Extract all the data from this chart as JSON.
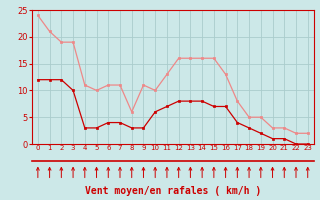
{
  "hours": [
    0,
    1,
    2,
    3,
    4,
    5,
    6,
    7,
    8,
    9,
    10,
    11,
    12,
    13,
    14,
    15,
    16,
    17,
    18,
    19,
    20,
    21,
    22,
    23
  ],
  "wind_avg": [
    12,
    12,
    12,
    10,
    3,
    3,
    4,
    4,
    3,
    3,
    6,
    7,
    8,
    8,
    8,
    7,
    7,
    4,
    3,
    2,
    1,
    1,
    0,
    0
  ],
  "wind_gust": [
    24,
    21,
    19,
    19,
    11,
    10,
    11,
    11,
    6,
    11,
    10,
    13,
    16,
    16,
    16,
    16,
    13,
    8,
    5,
    5,
    3,
    3,
    2,
    2
  ],
  "bg_color": "#cce8e8",
  "grid_color": "#aacccc",
  "line_avg_color": "#cc0000",
  "line_gust_color": "#ee8888",
  "marker_color_avg": "#cc0000",
  "marker_color_gust": "#ee8888",
  "xlabel": "Vent moyen/en rafales ( km/h )",
  "xlabel_color": "#cc0000",
  "tick_color": "#cc0000",
  "ylim": [
    0,
    25
  ],
  "yticks": [
    0,
    5,
    10,
    15,
    20,
    25
  ],
  "spine_color": "#cc0000",
  "arrow_color": "#cc0000",
  "sep_line_color": "#cc0000"
}
